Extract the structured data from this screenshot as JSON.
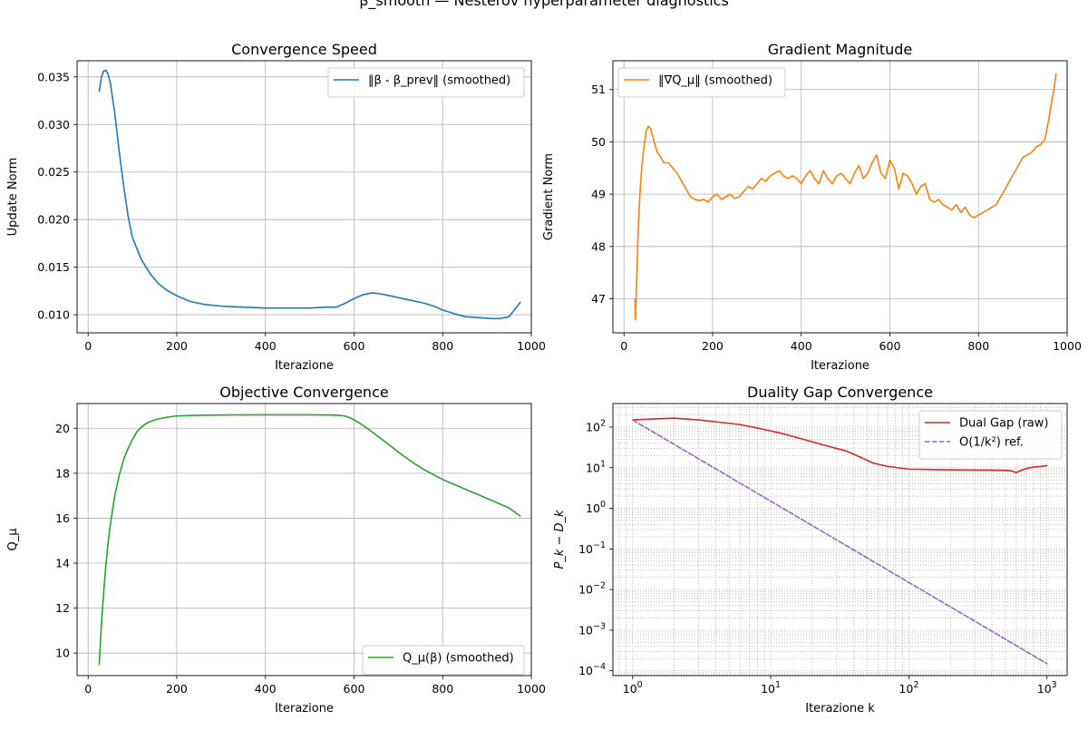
{
  "suptitle": "β_smooth — Nesterov hyperparameter diagnostics",
  "chart_data": [
    {
      "type": "line",
      "title": "Convergence Speed",
      "xlabel": "Iterazione",
      "ylabel": "Update Norm",
      "xlim": [
        -25,
        1000
      ],
      "ylim": [
        0.0081,
        0.0367
      ],
      "xticks": [
        0,
        200,
        400,
        600,
        800,
        1000
      ],
      "yticks": [
        0.01,
        0.015,
        0.02,
        0.025,
        0.03,
        0.035
      ],
      "ytick_labels": [
        "0.010",
        "0.015",
        "0.020",
        "0.025",
        "0.030",
        "0.035"
      ],
      "grid": true,
      "legend": "top-right",
      "series": [
        {
          "name": "‖β - β_prev‖ (smoothed)",
          "color": "#1f77b4",
          "x": [
            25,
            30,
            35,
            40,
            45,
            50,
            60,
            70,
            80,
            90,
            100,
            120,
            140,
            160,
            180,
            200,
            230,
            260,
            300,
            350,
            400,
            450,
            500,
            540,
            560,
            580,
            600,
            620,
            640,
            660,
            680,
            700,
            720,
            740,
            760,
            780,
            800,
            820,
            850,
            880,
            910,
            930,
            950,
            975
          ],
          "values": [
            0.0335,
            0.035,
            0.0356,
            0.0357,
            0.0353,
            0.0344,
            0.0312,
            0.0272,
            0.0236,
            0.0204,
            0.0181,
            0.0158,
            0.0143,
            0.0132,
            0.0125,
            0.012,
            0.0114,
            0.0111,
            0.0109,
            0.0108,
            0.0107,
            0.0107,
            0.0107,
            0.0108,
            0.0108,
            0.0112,
            0.0117,
            0.0121,
            0.0123,
            0.0122,
            0.012,
            0.0118,
            0.0116,
            0.0114,
            0.0112,
            0.0109,
            0.0105,
            0.0102,
            0.0098,
            0.0097,
            0.0096,
            0.0096,
            0.0098,
            0.0113
          ]
        }
      ]
    },
    {
      "type": "line",
      "title": "Gradient Magnitude",
      "xlabel": "Iterazione",
      "ylabel": "Gradient Norm",
      "xlim": [
        -25,
        1000
      ],
      "ylim": [
        46.35,
        51.55
      ],
      "xticks": [
        0,
        200,
        400,
        600,
        800,
        1000
      ],
      "yticks": [
        47,
        48,
        49,
        50,
        51
      ],
      "ytick_labels": [
        "47",
        "48",
        "49",
        "50",
        "51"
      ],
      "grid": true,
      "legend": "top-left",
      "series": [
        {
          "name": "‖∇Q_μ‖ (smoothed)",
          "color": "#ff7f0e",
          "x": [
            25,
            26,
            28,
            32,
            36,
            40,
            45,
            50,
            55,
            60,
            65,
            70,
            75,
            80,
            90,
            100,
            110,
            120,
            130,
            140,
            150,
            160,
            170,
            180,
            190,
            200,
            210,
            220,
            230,
            240,
            250,
            260,
            270,
            280,
            290,
            300,
            310,
            320,
            330,
            340,
            350,
            360,
            370,
            380,
            390,
            400,
            410,
            420,
            430,
            440,
            450,
            460,
            470,
            480,
            490,
            500,
            510,
            520,
            530,
            540,
            550,
            560,
            570,
            580,
            590,
            600,
            610,
            620,
            630,
            640,
            650,
            660,
            670,
            680,
            690,
            700,
            710,
            720,
            730,
            740,
            750,
            760,
            770,
            780,
            790,
            800,
            810,
            820,
            830,
            840,
            850,
            860,
            870,
            880,
            890,
            900,
            910,
            920,
            930,
            940,
            950,
            960,
            970,
            975
          ],
          "values": [
            47.0,
            46.6,
            47.2,
            48.3,
            49.0,
            49.5,
            49.9,
            50.2,
            50.3,
            50.25,
            50.1,
            49.95,
            49.8,
            49.75,
            49.6,
            49.6,
            49.5,
            49.4,
            49.25,
            49.1,
            48.95,
            48.9,
            48.88,
            48.9,
            48.85,
            48.95,
            49.0,
            48.9,
            48.95,
            49.0,
            48.92,
            48.95,
            49.05,
            49.15,
            49.1,
            49.2,
            49.3,
            49.25,
            49.35,
            49.4,
            49.45,
            49.35,
            49.3,
            49.35,
            49.3,
            49.2,
            49.35,
            49.45,
            49.3,
            49.2,
            49.45,
            49.3,
            49.2,
            49.35,
            49.4,
            49.3,
            49.2,
            49.4,
            49.55,
            49.3,
            49.4,
            49.6,
            49.75,
            49.4,
            49.3,
            49.65,
            49.5,
            49.1,
            49.4,
            49.35,
            49.2,
            49.0,
            49.15,
            49.2,
            48.9,
            48.85,
            48.9,
            48.8,
            48.75,
            48.7,
            48.8,
            48.65,
            48.75,
            48.6,
            48.55,
            48.6,
            48.65,
            48.7,
            48.75,
            48.8,
            48.95,
            49.1,
            49.25,
            49.4,
            49.55,
            49.7,
            49.75,
            49.8,
            49.9,
            49.95,
            50.05,
            50.5,
            51.0,
            51.3
          ]
        }
      ]
    },
    {
      "type": "line",
      "title": "Objective Convergence",
      "xlabel": "Iterazione",
      "ylabel": "Q_μ",
      "xlim": [
        -25,
        1000
      ],
      "ylim": [
        9.0,
        21.1
      ],
      "xticks": [
        0,
        200,
        400,
        600,
        800,
        1000
      ],
      "yticks": [
        10,
        12,
        14,
        16,
        18,
        20
      ],
      "ytick_labels": [
        "10",
        "12",
        "14",
        "16",
        "18",
        "20"
      ],
      "grid": true,
      "legend": "bottom-right",
      "series": [
        {
          "name": "Q_μ(β) (smoothed)",
          "color": "#2ca02c",
          "x": [
            25,
            30,
            35,
            40,
            45,
            50,
            60,
            70,
            80,
            90,
            100,
            110,
            120,
            130,
            140,
            150,
            160,
            180,
            200,
            250,
            300,
            400,
            500,
            550,
            570,
            580,
            590,
            600,
            620,
            640,
            660,
            680,
            700,
            720,
            740,
            760,
            780,
            800,
            850,
            900,
            950,
            975
          ],
          "values": [
            9.5,
            11.3,
            12.7,
            13.9,
            14.9,
            15.7,
            17.0,
            17.9,
            18.6,
            19.1,
            19.5,
            19.85,
            20.05,
            20.2,
            20.3,
            20.37,
            20.42,
            20.5,
            20.55,
            20.58,
            20.59,
            20.6,
            20.6,
            20.59,
            20.57,
            20.54,
            20.47,
            20.38,
            20.13,
            19.85,
            19.55,
            19.25,
            18.94,
            18.65,
            18.38,
            18.14,
            17.93,
            17.72,
            17.3,
            16.88,
            16.45,
            16.1
          ]
        }
      ]
    },
    {
      "type": "line",
      "title": "Duality Gap Convergence",
      "xlabel": "Iterazione k",
      "ylabel": "P_k − D_k",
      "xscale": "log",
      "yscale": "log",
      "xlim": [
        0.72,
        1400
      ],
      "ylim": [
        7.62e-05,
        380
      ],
      "xticks": [
        1,
        10,
        100,
        1000
      ],
      "xtick_labels": [
        [
          "10",
          "0"
        ],
        [
          "10",
          "1"
        ],
        [
          "10",
          "2"
        ],
        [
          "10",
          "3"
        ]
      ],
      "yticks": [
        0.0001,
        0.001,
        0.01,
        0.1,
        1,
        10,
        100
      ],
      "ytick_labels": [
        [
          "10",
          "−4"
        ],
        [
          "10",
          "−3"
        ],
        [
          "10",
          "−2"
        ],
        [
          "10",
          "−1"
        ],
        [
          "10",
          "0"
        ],
        [
          "10",
          "1"
        ],
        [
          "10",
          "2"
        ]
      ],
      "grid": true,
      "minor_grid": true,
      "legend": "top-right",
      "series": [
        {
          "name": "Dual Gap (raw)",
          "color": "#d62728",
          "style": "solid",
          "x": [
            1,
            1.5,
            2,
            3,
            4,
            6,
            8,
            12,
            18,
            25,
            35,
            45,
            55,
            70,
            100,
            150,
            200,
            300,
            400,
            500,
            550,
            600,
            650,
            700,
            750,
            800,
            850,
            900,
            950,
            1000
          ],
          "values": [
            150,
            160,
            165,
            150,
            135,
            115,
            95,
            70,
            48,
            35,
            26,
            18,
            13,
            10.8,
            9.2,
            9.0,
            8.9,
            8.8,
            8.7,
            8.6,
            8.4,
            7.6,
            8.6,
            9.4,
            10.0,
            10.3,
            10.5,
            10.8,
            11.0,
            11.3
          ]
        },
        {
          "name": "O(1/k²) ref.",
          "color": "#9467bd",
          "style": "dashed",
          "x": [
            1,
            1000
          ],
          "values": [
            150,
            0.00015
          ]
        }
      ]
    }
  ]
}
